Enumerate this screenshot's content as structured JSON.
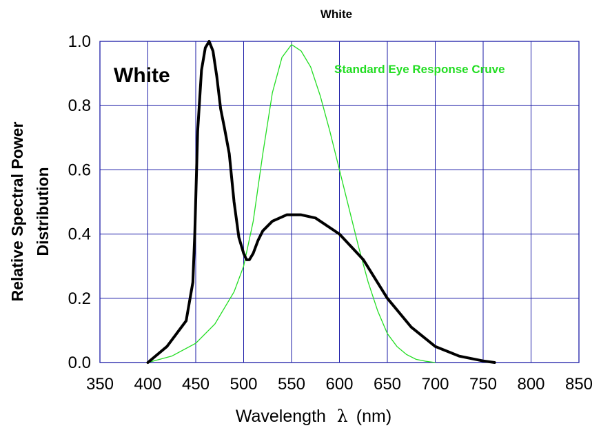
{
  "chart_data": {
    "type": "line",
    "title": "White",
    "xlabel": "Wavelength",
    "xlabel_symbol": "λ",
    "xlabel_unit": "(nm)",
    "ylabel": [
      "Relative Spectral Power",
      "Distribution"
    ],
    "xlim": [
      350,
      850
    ],
    "ylim": [
      0,
      1.0
    ],
    "x_ticks": [
      "350",
      "400",
      "450",
      "500",
      "550",
      "600",
      "650",
      "700",
      "750",
      "800",
      "850"
    ],
    "y_ticks": [
      "0.0",
      "0.2",
      "0.4",
      "0.6",
      "0.8",
      "1.0"
    ],
    "grid": true,
    "annotations": [
      "White",
      "Standard Eye Response Cruve"
    ],
    "colors": {
      "grid": "#1a1aa6",
      "spectrum": "#000000",
      "eye": "#22dd22"
    },
    "series": [
      {
        "name": "White",
        "x": [
          400,
          420,
          440,
          447,
          449,
          452,
          456,
          460,
          464,
          468,
          472,
          476,
          480,
          485,
          490,
          495,
          500,
          503,
          506,
          510,
          515,
          520,
          530,
          545,
          560,
          575,
          600,
          625,
          650,
          675,
          700,
          725,
          750,
          762
        ],
        "values": [
          0.0,
          0.05,
          0.13,
          0.25,
          0.4,
          0.72,
          0.91,
          0.98,
          1.0,
          0.97,
          0.89,
          0.79,
          0.73,
          0.65,
          0.5,
          0.39,
          0.34,
          0.32,
          0.32,
          0.34,
          0.38,
          0.41,
          0.44,
          0.46,
          0.46,
          0.45,
          0.4,
          0.32,
          0.2,
          0.11,
          0.05,
          0.02,
          0.005,
          0.0
        ]
      },
      {
        "name": "Standard Eye Response Cruve",
        "x": [
          400,
          425,
          450,
          470,
          490,
          500,
          510,
          520,
          530,
          540,
          550,
          560,
          570,
          580,
          590,
          600,
          610,
          620,
          630,
          640,
          650,
          660,
          670,
          680,
          690,
          700
        ],
        "values": [
          0.0,
          0.02,
          0.06,
          0.12,
          0.22,
          0.3,
          0.44,
          0.65,
          0.84,
          0.95,
          0.99,
          0.97,
          0.92,
          0.83,
          0.72,
          0.6,
          0.48,
          0.36,
          0.25,
          0.16,
          0.09,
          0.05,
          0.025,
          0.01,
          0.004,
          0.0
        ]
      }
    ]
  }
}
